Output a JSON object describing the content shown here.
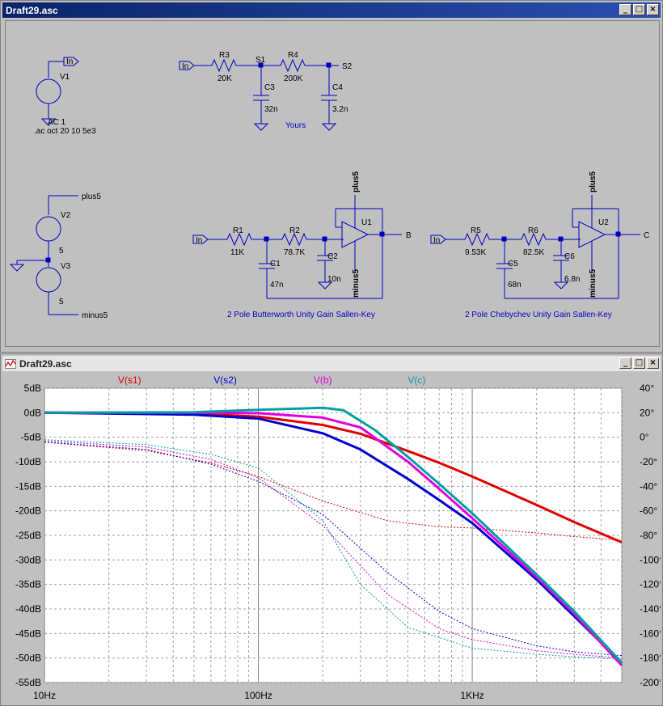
{
  "schematic_window": {
    "title": "Draft29.asc",
    "controls": {
      "minimize": "_",
      "maximize": "□",
      "close": "×"
    }
  },
  "plot_window": {
    "title": "Draft29.asc",
    "controls": {
      "minimize": "_",
      "maximize": "□",
      "close": "×"
    }
  },
  "schematic": {
    "source_v1": {
      "name": "V1",
      "value": "AC 1",
      "net": "In",
      "directive": ".ac oct 20 10 5e3"
    },
    "source_v2": {
      "name": "V2",
      "value": "5",
      "net": "plus5"
    },
    "source_v3": {
      "name": "V3",
      "value": "5",
      "net": "minus5"
    },
    "rc_filter": {
      "in": "In",
      "r3": {
        "name": "R3",
        "value": "20K"
      },
      "r4": {
        "name": "R4",
        "value": "200K"
      },
      "c3": {
        "name": "C3",
        "value": "32n"
      },
      "c4": {
        "name": "C4",
        "value": "3.2n"
      },
      "node1": "S1",
      "node2": "S2",
      "caption": "Yours"
    },
    "butterworth": {
      "in": "In",
      "r1": {
        "name": "R1",
        "value": "11K"
      },
      "r2": {
        "name": "R2",
        "value": "78.7K"
      },
      "c1": {
        "name": "C1",
        "value": "47n"
      },
      "c2": {
        "name": "C2",
        "value": "10n"
      },
      "opamp": "U1",
      "out": "B",
      "plus": "plus5",
      "minus": "minus5",
      "caption": "2 Pole Butterworth Unity Gain Sallen-Key"
    },
    "chebychev": {
      "in": "In",
      "r5": {
        "name": "R5",
        "value": "9.53K"
      },
      "r6": {
        "name": "R6",
        "value": "82.5K"
      },
      "c5": {
        "name": "C5",
        "value": "68n"
      },
      "c6": {
        "name": "C6",
        "value": "6.8n"
      },
      "opamp": "U2",
      "out": "C",
      "plus": "plus5",
      "minus": "minus5",
      "caption": "2 Pole Chebychev Unity Gain Sallen-Key"
    }
  },
  "chart_data": {
    "type": "line",
    "x_scale": "log",
    "xlim": [
      10,
      5000
    ],
    "x_ticks": [
      "10Hz",
      "100Hz",
      "1KHz"
    ],
    "x_tick_values": [
      10,
      100,
      1000
    ],
    "ylim_left": [
      -55,
      5
    ],
    "y_ticks_left": [
      "5dB",
      "0dB",
      "-5dB",
      "-10dB",
      "-15dB",
      "-20dB",
      "-25dB",
      "-30dB",
      "-35dB",
      "-40dB",
      "-45dB",
      "-50dB",
      "-55dB"
    ],
    "ylim_right": [
      -200,
      40
    ],
    "y_ticks_right": [
      "40°",
      "20°",
      "0°",
      "-20°",
      "-40°",
      "-60°",
      "-80°",
      "-100°",
      "-120°",
      "-140°",
      "-160°",
      "-180°",
      "-200°"
    ],
    "grid": true,
    "legend_placement": "top",
    "series": [
      {
        "name": "V(s1)",
        "color": "#e00000",
        "mag_db": [
          [
            10,
            0
          ],
          [
            50,
            -0.2
          ],
          [
            100,
            -0.8
          ],
          [
            200,
            -2.5
          ],
          [
            300,
            -4.3
          ],
          [
            500,
            -7.8
          ],
          [
            700,
            -10.2
          ],
          [
            1000,
            -13
          ],
          [
            2000,
            -18.8
          ],
          [
            3000,
            -22.3
          ],
          [
            5000,
            -26.4
          ]
        ],
        "phase_deg": [
          [
            10,
            -4
          ],
          [
            30,
            -11
          ],
          [
            60,
            -21
          ],
          [
            100,
            -32
          ],
          [
            200,
            -52
          ],
          [
            400,
            -68
          ],
          [
            700,
            -73
          ],
          [
            1000,
            -74
          ],
          [
            2000,
            -78
          ],
          [
            3000,
            -81
          ],
          [
            5000,
            -84
          ]
        ]
      },
      {
        "name": "V(s2)",
        "color": "#0000d0",
        "mag_db": [
          [
            10,
            0
          ],
          [
            50,
            -0.4
          ],
          [
            100,
            -1.2
          ],
          [
            200,
            -4.2
          ],
          [
            300,
            -7.5
          ],
          [
            500,
            -13.5
          ],
          [
            700,
            -17.8
          ],
          [
            1000,
            -22.5
          ],
          [
            2000,
            -34
          ],
          [
            3000,
            -41.5
          ],
          [
            5000,
            -51
          ]
        ],
        "phase_deg": [
          [
            10,
            -4
          ],
          [
            30,
            -10
          ],
          [
            60,
            -22
          ],
          [
            100,
            -36
          ],
          [
            200,
            -63
          ],
          [
            400,
            -110
          ],
          [
            700,
            -142
          ],
          [
            1000,
            -156
          ],
          [
            2000,
            -170
          ],
          [
            3000,
            -175
          ],
          [
            5000,
            -178
          ]
        ]
      },
      {
        "name": "V(b)",
        "color": "#e000e0",
        "mag_db": [
          [
            10,
            0
          ],
          [
            50,
            0
          ],
          [
            100,
            -0.1
          ],
          [
            200,
            -1
          ],
          [
            300,
            -3
          ],
          [
            500,
            -10
          ],
          [
            700,
            -15.5
          ],
          [
            1000,
            -21.5
          ],
          [
            2000,
            -33.5
          ],
          [
            3000,
            -41
          ],
          [
            5000,
            -51.5
          ]
        ],
        "phase_deg": [
          [
            10,
            -3
          ],
          [
            30,
            -8
          ],
          [
            60,
            -18
          ],
          [
            100,
            -33
          ],
          [
            200,
            -72
          ],
          [
            400,
            -128
          ],
          [
            700,
            -156
          ],
          [
            1000,
            -165
          ],
          [
            2000,
            -174
          ],
          [
            3000,
            -177
          ],
          [
            5000,
            -180
          ]
        ]
      },
      {
        "name": "V(c)",
        "color": "#00a0a0",
        "mag_db": [
          [
            10,
            0
          ],
          [
            50,
            0.1
          ],
          [
            100,
            0.6
          ],
          [
            200,
            1
          ],
          [
            250,
            0.5
          ],
          [
            350,
            -3.5
          ],
          [
            500,
            -9
          ],
          [
            700,
            -14.5
          ],
          [
            1000,
            -20.5
          ],
          [
            2000,
            -33
          ],
          [
            3000,
            -40.5
          ],
          [
            5000,
            -51
          ]
        ],
        "phase_deg": [
          [
            10,
            -2
          ],
          [
            30,
            -6
          ],
          [
            60,
            -14
          ],
          [
            100,
            -25
          ],
          [
            200,
            -68
          ],
          [
            300,
            -120
          ],
          [
            500,
            -155
          ],
          [
            1000,
            -172
          ],
          [
            2000,
            -177
          ],
          [
            3000,
            -179
          ],
          [
            5000,
            -181
          ]
        ]
      }
    ]
  }
}
